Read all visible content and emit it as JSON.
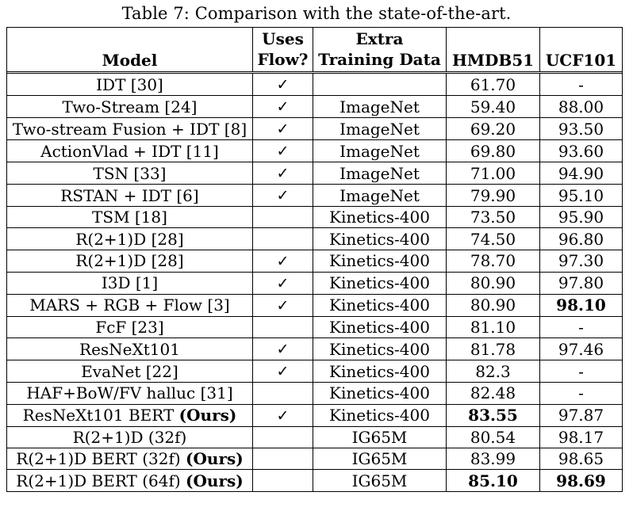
{
  "caption": "Table 7: Comparison with the state-of-the-art.",
  "columns": {
    "model": "Model",
    "flow_1": "Uses",
    "flow_2": "Flow?",
    "extra_1": "Extra",
    "extra_2": "Training Data",
    "hmdb": "HMDB51",
    "ucf": "UCF101"
  },
  "check_symbol": "✓",
  "rows": [
    {
      "model": "IDT [30]",
      "ours": "",
      "flow": "✓",
      "extra": "",
      "hmdb": "61.70",
      "ucf": "-"
    },
    {
      "model": "Two-Stream [24]",
      "ours": "",
      "flow": "✓",
      "extra": "ImageNet",
      "hmdb": "59.40",
      "ucf": "88.00"
    },
    {
      "model": "Two-stream Fusion + IDT [8]",
      "ours": "",
      "flow": "✓",
      "extra": "ImageNet",
      "hmdb": "69.20",
      "ucf": "93.50"
    },
    {
      "model": "ActionVlad + IDT [11]",
      "ours": "",
      "flow": "✓",
      "extra": "ImageNet",
      "hmdb": "69.80",
      "ucf": "93.60"
    },
    {
      "model": "TSN [33]",
      "ours": "",
      "flow": "✓",
      "extra": "ImageNet",
      "hmdb": "71.00",
      "ucf": "94.90"
    },
    {
      "model": "RSTAN + IDT [6]",
      "ours": "",
      "flow": "✓",
      "extra": "ImageNet",
      "hmdb": "79.90",
      "ucf": "95.10"
    },
    {
      "model": "TSM [18]",
      "ours": "",
      "flow": "",
      "extra": "Kinetics-400",
      "hmdb": "73.50",
      "ucf": "95.90"
    },
    {
      "model": "R(2+1)D [28]",
      "ours": "",
      "flow": "",
      "extra": "Kinetics-400",
      "hmdb": "74.50",
      "ucf": "96.80"
    },
    {
      "model": "R(2+1)D [28]",
      "ours": "",
      "flow": "✓",
      "extra": "Kinetics-400",
      "hmdb": "78.70",
      "ucf": "97.30"
    },
    {
      "model": "I3D [1]",
      "ours": "",
      "flow": "✓",
      "extra": "Kinetics-400",
      "hmdb": "80.90",
      "ucf": "97.80"
    },
    {
      "model": "MARS + RGB + Flow [3]",
      "ours": "",
      "flow": "✓",
      "extra": "Kinetics-400",
      "hmdb": "80.90",
      "ucf": "98.10"
    },
    {
      "model": "FcF [23]",
      "ours": "",
      "flow": "",
      "extra": "Kinetics-400",
      "hmdb": "81.10",
      "ucf": "-"
    },
    {
      "model": "ResNeXt101",
      "ours": "",
      "flow": "✓",
      "extra": "Kinetics-400",
      "hmdb": "81.78",
      "ucf": "97.46"
    },
    {
      "model": "EvaNet [22]",
      "ours": "",
      "flow": "✓",
      "extra": "Kinetics-400",
      "hmdb": "82.3",
      "ucf": "-"
    },
    {
      "model": "HAF+BoW/FV halluc [31]",
      "ours": "",
      "flow": "",
      "extra": "Kinetics-400",
      "hmdb": "82.48",
      "ucf": "-"
    },
    {
      "model": "ResNeXt101 BERT ",
      "ours": "(Ours)",
      "flow": "✓",
      "extra": "Kinetics-400",
      "hmdb": "83.55",
      "ucf": "97.87"
    },
    {
      "model": "R(2+1)D (32f)",
      "ours": "",
      "flow": "",
      "extra": "IG65M",
      "hmdb": "80.54",
      "ucf": "98.17"
    },
    {
      "model": "R(2+1)D BERT (32f) ",
      "ours": "(Ours)",
      "flow": "",
      "extra": "IG65M",
      "hmdb": "83.99",
      "ucf": "98.65"
    },
    {
      "model": "R(2+1)D BERT (64f) ",
      "ours": "(Ours)",
      "flow": "",
      "extra": "IG65M",
      "hmdb": "85.10",
      "ucf": "98.69"
    }
  ],
  "bold_cells": {
    "ucf": [
      10,
      18
    ],
    "hmdb": [
      15,
      18
    ]
  }
}
